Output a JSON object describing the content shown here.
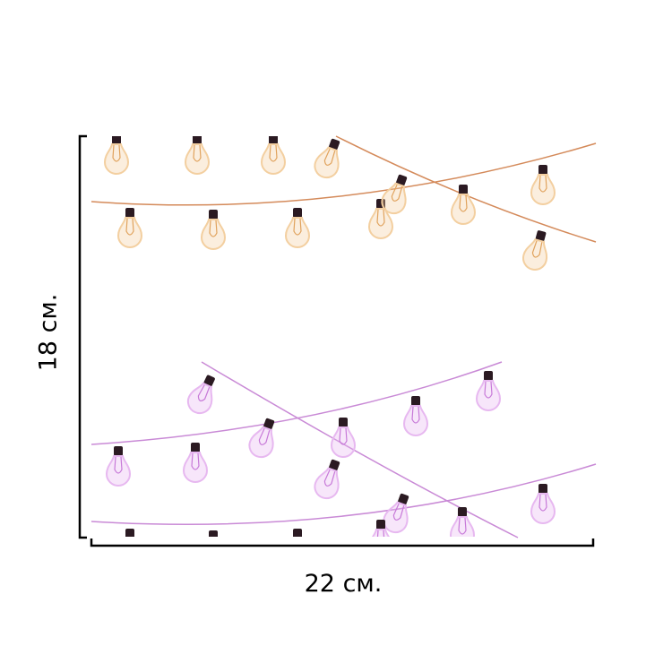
{
  "dimensions": {
    "width_label": "22 см.",
    "height_label": "18 см."
  },
  "product_image": {
    "subject": "bulb-string-lights",
    "colors": {
      "warm_wire": "#d48a5a",
      "warm_glow": "#f3cfa0",
      "warm_filament": "#e0a25c",
      "pink_wire": "#c98ad6",
      "pink_glow": "#e7b8f0",
      "pink_filament": "#c779d8",
      "socket": "#2b1a22"
    }
  },
  "colors": {
    "frame": "#000000",
    "background": "#ffffff"
  }
}
